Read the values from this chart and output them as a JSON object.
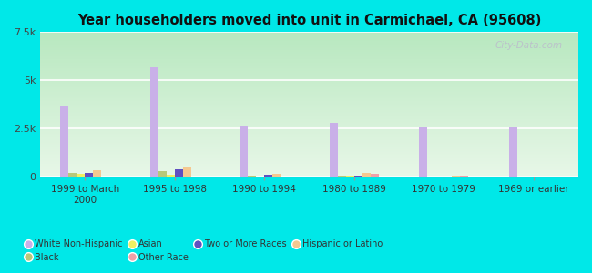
{
  "title": "Year householders moved into unit in Carmichael, CA (95608)",
  "categories": [
    "1999 to March\n2000",
    "1995 to 1998",
    "1990 to 1994",
    "1980 to 1989",
    "1970 to 1979",
    "1969 or earlier"
  ],
  "series_order": [
    "White Non-Hispanic",
    "Black",
    "Asian",
    "Two or More Races",
    "Hispanic or Latino",
    "Other Race"
  ],
  "series": {
    "White Non-Hispanic": {
      "values": [
        3700,
        5700,
        2600,
        2800,
        2550,
        2550
      ],
      "color": "#c9b0e8"
    },
    "Black": {
      "values": [
        200,
        310,
        45,
        55,
        25,
        18
      ],
      "color": "#b8c87a"
    },
    "Asian": {
      "values": [
        150,
        100,
        30,
        45,
        18,
        18
      ],
      "color": "#f0f060"
    },
    "Two or More Races": {
      "values": [
        220,
        380,
        90,
        50,
        18,
        18
      ],
      "color": "#6050c0"
    },
    "Hispanic or Latino": {
      "values": [
        350,
        500,
        140,
        200,
        45,
        28
      ],
      "color": "#f5c890"
    },
    "Other Race": {
      "values": [
        28,
        28,
        18,
        145,
        45,
        18
      ],
      "color": "#f0a0a8"
    }
  },
  "ylim": [
    0,
    7500
  ],
  "yticks": [
    0,
    2500,
    5000,
    7500
  ],
  "ytick_labels": [
    "0",
    "2.5k",
    "5k",
    "7.5k"
  ],
  "background_color": "#00e8e8",
  "plot_bg_top": "#b8e8c0",
  "plot_bg_bottom": "#e8f8e8",
  "watermark": "City-Data.com",
  "legend_order": [
    "White Non-Hispanic",
    "Black",
    "Asian",
    "Other Race",
    "Two or More Races",
    "Hispanic or Latino"
  ]
}
